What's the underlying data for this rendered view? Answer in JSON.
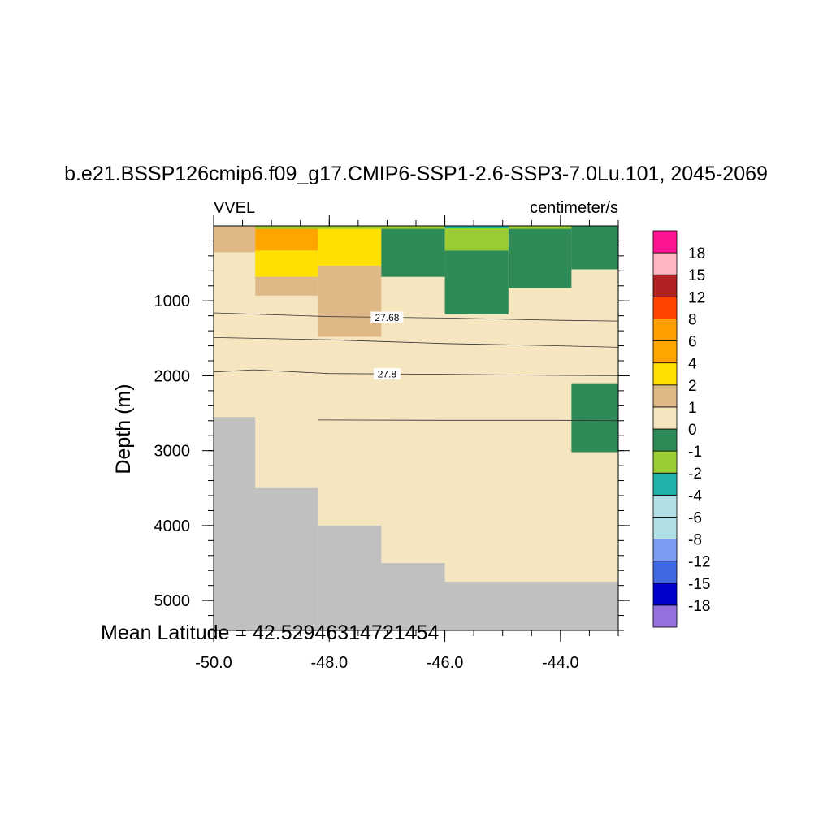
{
  "chart_data": {
    "type": "heatmap",
    "title": "b.e21.BSSP126cmip6.f09_g17.CMIP6-SSP1-2.6-SSP3-7.0Lu.101, 2045-2069",
    "left_label": "VVEL",
    "right_label": "centimeter/s",
    "xlabel": "",
    "ylabel": "Depth (m)",
    "footer_text": "Mean Latitude = 42.52946314721454",
    "xlim": [
      -50.0,
      -43.0
    ],
    "ylim": [
      0,
      5400
    ],
    "y_reversed": true,
    "x_ticks": [
      {
        "value": -50.0,
        "label": "-50.0"
      },
      {
        "value": -48.0,
        "label": "-48.0"
      },
      {
        "value": -46.0,
        "label": "-46.0"
      },
      {
        "value": -44.0,
        "label": "-44.0"
      }
    ],
    "x_minor_step": 0.5,
    "y_ticks": [
      {
        "value": 1000,
        "label": "1000"
      },
      {
        "value": 2000,
        "label": "2000"
      },
      {
        "value": 3000,
        "label": "3000"
      },
      {
        "value": 4000,
        "label": "4000"
      },
      {
        "value": 5000,
        "label": "5000"
      }
    ],
    "y_minor_step": 200,
    "colorbar": {
      "colors": [
        "#9370db",
        "#0000cd",
        "#4169e1",
        "#7b9cf0",
        "#b0e0e6",
        "#b0e0e6",
        "#20b2aa",
        "#9acd32",
        "#2e8b57",
        "#f5e6c0",
        "#deb887",
        "#ffe000",
        "#ffa500",
        "#ffa000",
        "#ff4500",
        "#b22222",
        "#ffb6c1",
        "#ff1493"
      ],
      "levels": [
        "-18",
        "-15",
        "-12",
        "-8",
        "-6",
        "-4",
        "-2",
        "-1",
        "0",
        "1",
        "2",
        "4",
        "6",
        "8",
        "12",
        "15",
        "18"
      ]
    },
    "cells": [
      {
        "x0": -50.0,
        "x1": -43.0,
        "d0": 0,
        "d1": 5400,
        "c": "#f5e6c0"
      },
      {
        "x0": -50.0,
        "x1": -49.28,
        "d0": 0,
        "d1": 350,
        "c": "#deb887"
      },
      {
        "x0": -49.28,
        "x1": -48.19,
        "d0": 0,
        "d1": 330,
        "c": "#ffa500"
      },
      {
        "x0": -49.28,
        "x1": -48.19,
        "d0": 330,
        "d1": 680,
        "c": "#ffe000"
      },
      {
        "x0": -49.28,
        "x1": -48.19,
        "d0": 680,
        "d1": 930,
        "c": "#deb887"
      },
      {
        "x0": -48.19,
        "x1": -47.1,
        "d0": 0,
        "d1": 530,
        "c": "#ffe000"
      },
      {
        "x0": -48.19,
        "x1": -47.1,
        "d0": 530,
        "d1": 1480,
        "c": "#deb887"
      },
      {
        "x0": -47.1,
        "x1": -46.0,
        "d0": 0,
        "d1": 680,
        "c": "#2e8b57"
      },
      {
        "x0": -46.0,
        "x1": -44.9,
        "d0": 0,
        "d1": 330,
        "c": "#9acd32"
      },
      {
        "x0": -46.0,
        "x1": -44.9,
        "d0": 330,
        "d1": 1180,
        "c": "#2e8b57"
      },
      {
        "x0": -44.9,
        "x1": -43.81,
        "d0": 0,
        "d1": 830,
        "c": "#2e8b57"
      },
      {
        "x0": -43.81,
        "x1": -43.0,
        "d0": 0,
        "d1": 580,
        "c": "#2e8b57"
      },
      {
        "x0": -43.81,
        "x1": -43.0,
        "d0": 2100,
        "d1": 3020,
        "c": "#2e8b57"
      },
      {
        "x0": -50.0,
        "x1": -49.28,
        "d0": 2550,
        "d1": 5400,
        "c": "#c0c0c0"
      },
      {
        "x0": -49.28,
        "x1": -48.19,
        "d0": 3500,
        "d1": 5400,
        "c": "#c0c0c0"
      },
      {
        "x0": -48.19,
        "x1": -47.1,
        "d0": 4000,
        "d1": 5400,
        "c": "#c0c0c0"
      },
      {
        "x0": -47.1,
        "x1": -46.0,
        "d0": 4500,
        "d1": 5400,
        "c": "#c0c0c0"
      },
      {
        "x0": -46.0,
        "x1": -43.0,
        "d0": 4750,
        "d1": 5400,
        "c": "#c0c0c0"
      },
      {
        "x0": -49.28,
        "x1": -43.81,
        "d0": 0,
        "d1": 40,
        "c": "#9acd32"
      },
      {
        "x0": -46.0,
        "x1": -44.9,
        "d0": 0,
        "d1": 30,
        "c": "#20b2aa"
      }
    ],
    "contours": [
      {
        "points": [
          [
            -50.0,
            1160
          ],
          [
            -48.0,
            1210
          ],
          [
            -46.0,
            1230
          ],
          [
            -44.0,
            1260
          ],
          [
            -43.0,
            1270
          ]
        ],
        "label": "27.68",
        "label_x": -47.0
      },
      {
        "points": [
          [
            -50.0,
            1490
          ],
          [
            -48.0,
            1520
          ],
          [
            -46.0,
            1570
          ],
          [
            -44.0,
            1600
          ],
          [
            -43.0,
            1620
          ]
        ],
        "label": "",
        "label_x": null
      },
      {
        "points": [
          [
            -50.0,
            1950
          ],
          [
            -49.3,
            1920
          ],
          [
            -48.0,
            1970
          ],
          [
            -46.0,
            1980
          ],
          [
            -44.0,
            1995
          ],
          [
            -43.0,
            2000
          ]
        ],
        "label": "27.8",
        "label_x": -47.0
      },
      {
        "points": [
          [
            -48.19,
            2590
          ],
          [
            -46.0,
            2595
          ],
          [
            -44.0,
            2595
          ],
          [
            -43.0,
            2600
          ]
        ],
        "label": "",
        "label_x": null
      }
    ]
  }
}
